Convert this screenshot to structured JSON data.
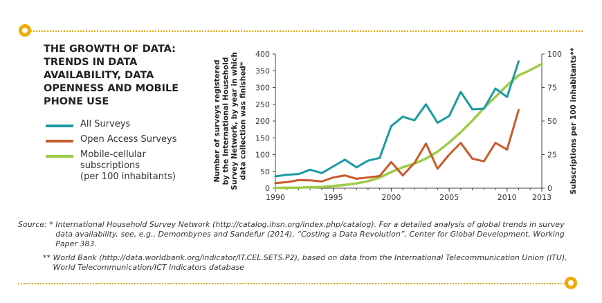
{
  "title": "THE GROWTH OF DATA: TRENDS IN DATA AVAILABILITY, DATA OPENNESS AND MOBILE PHONE USE",
  "colors": {
    "accent": "#f2a900",
    "teal": "#1a9ba1",
    "orange": "#c95a2b",
    "green": "#9ccc48"
  },
  "legend": [
    {
      "label": "All Surveys",
      "color": "#1a9ba1"
    },
    {
      "label": "Open Access Surveys",
      "color": "#c95a2b"
    },
    {
      "label": "Mobile-cellular\nsubscriptions\n(per 100 inhabitants)",
      "color": "#9ccc48"
    }
  ],
  "chart_data": {
    "type": "line",
    "x_ticks": [
      1990,
      1995,
      2000,
      2005,
      2010,
      2013
    ],
    "xlim": [
      1990,
      2013
    ],
    "ylabel_left": "Number of surveys registered by the International Household Survey Network, by year in which data collection was finished*",
    "ylabel_right": "Subscriptions per 100 inhabitants**",
    "ylim_left": [
      0,
      400
    ],
    "ylim_right": [
      0,
      100
    ],
    "y_ticks_left": [
      0,
      50,
      100,
      150,
      200,
      250,
      300,
      350,
      400
    ],
    "y_ticks_right": [
      0,
      25,
      50,
      75,
      100
    ],
    "grid": false,
    "series": [
      {
        "name": "All Surveys",
        "axis": "left",
        "color": "#1a9ba1",
        "x": [
          1990,
          1991,
          1992,
          1993,
          1994,
          1995,
          1996,
          1997,
          1998,
          1999,
          2000,
          2001,
          2002,
          2003,
          2004,
          2005,
          2006,
          2007,
          2008,
          2009,
          2010,
          2011
        ],
        "y": [
          35,
          40,
          42,
          55,
          45,
          65,
          85,
          62,
          82,
          90,
          185,
          213,
          202,
          250,
          195,
          215,
          287,
          235,
          237,
          297,
          272,
          378
        ]
      },
      {
        "name": "Open Access Surveys",
        "axis": "left",
        "color": "#c95a2b",
        "x": [
          1990,
          1991,
          1992,
          1993,
          1994,
          1995,
          1996,
          1997,
          1998,
          1999,
          2000,
          2001,
          2002,
          2003,
          2004,
          2005,
          2006,
          2007,
          2008,
          2009,
          2010,
          2011
        ],
        "y": [
          15,
          18,
          24,
          23,
          20,
          32,
          38,
          28,
          32,
          36,
          78,
          38,
          75,
          133,
          58,
          100,
          135,
          88,
          80,
          135,
          115,
          233
        ]
      },
      {
        "name": "Mobile-cellular subscriptions (per 100 inhabitants)",
        "axis": "right",
        "color": "#9ccc48",
        "x": [
          1990,
          1991,
          1992,
          1993,
          1994,
          1995,
          1996,
          1997,
          1998,
          1999,
          2000,
          2001,
          2002,
          2003,
          2004,
          2005,
          2006,
          2007,
          2008,
          2009,
          2010,
          2011,
          2012,
          2013
        ],
        "y": [
          0.2,
          0.3,
          0.4,
          0.6,
          0.9,
          1.6,
          2.5,
          3.5,
          5.2,
          7.9,
          12.0,
          15.6,
          18.3,
          22.0,
          27.2,
          34.0,
          41.7,
          50.3,
          59.7,
          68.0,
          76.6,
          84.0,
          88.0,
          92.5
        ]
      }
    ]
  },
  "source": {
    "line1_mark": "Source: * ",
    "line1": "International Household Survey Network (http://catalog.ihsn.org/index.php/catalog). For a detailed analysis of global trends in survey data availability, see, e.g., Demombynes and Sandefur (2014), “Costing a Data Revolution”, Center for Global Development, Working Paper 383.",
    "line2_mark": "** ",
    "line2": "World Bank (http://data.worldbank.org/indicator/IT.CEL.SETS.P2), based on data from the International Telecommunication Union (ITU), World Telecommunication/ICT Indicators database"
  }
}
